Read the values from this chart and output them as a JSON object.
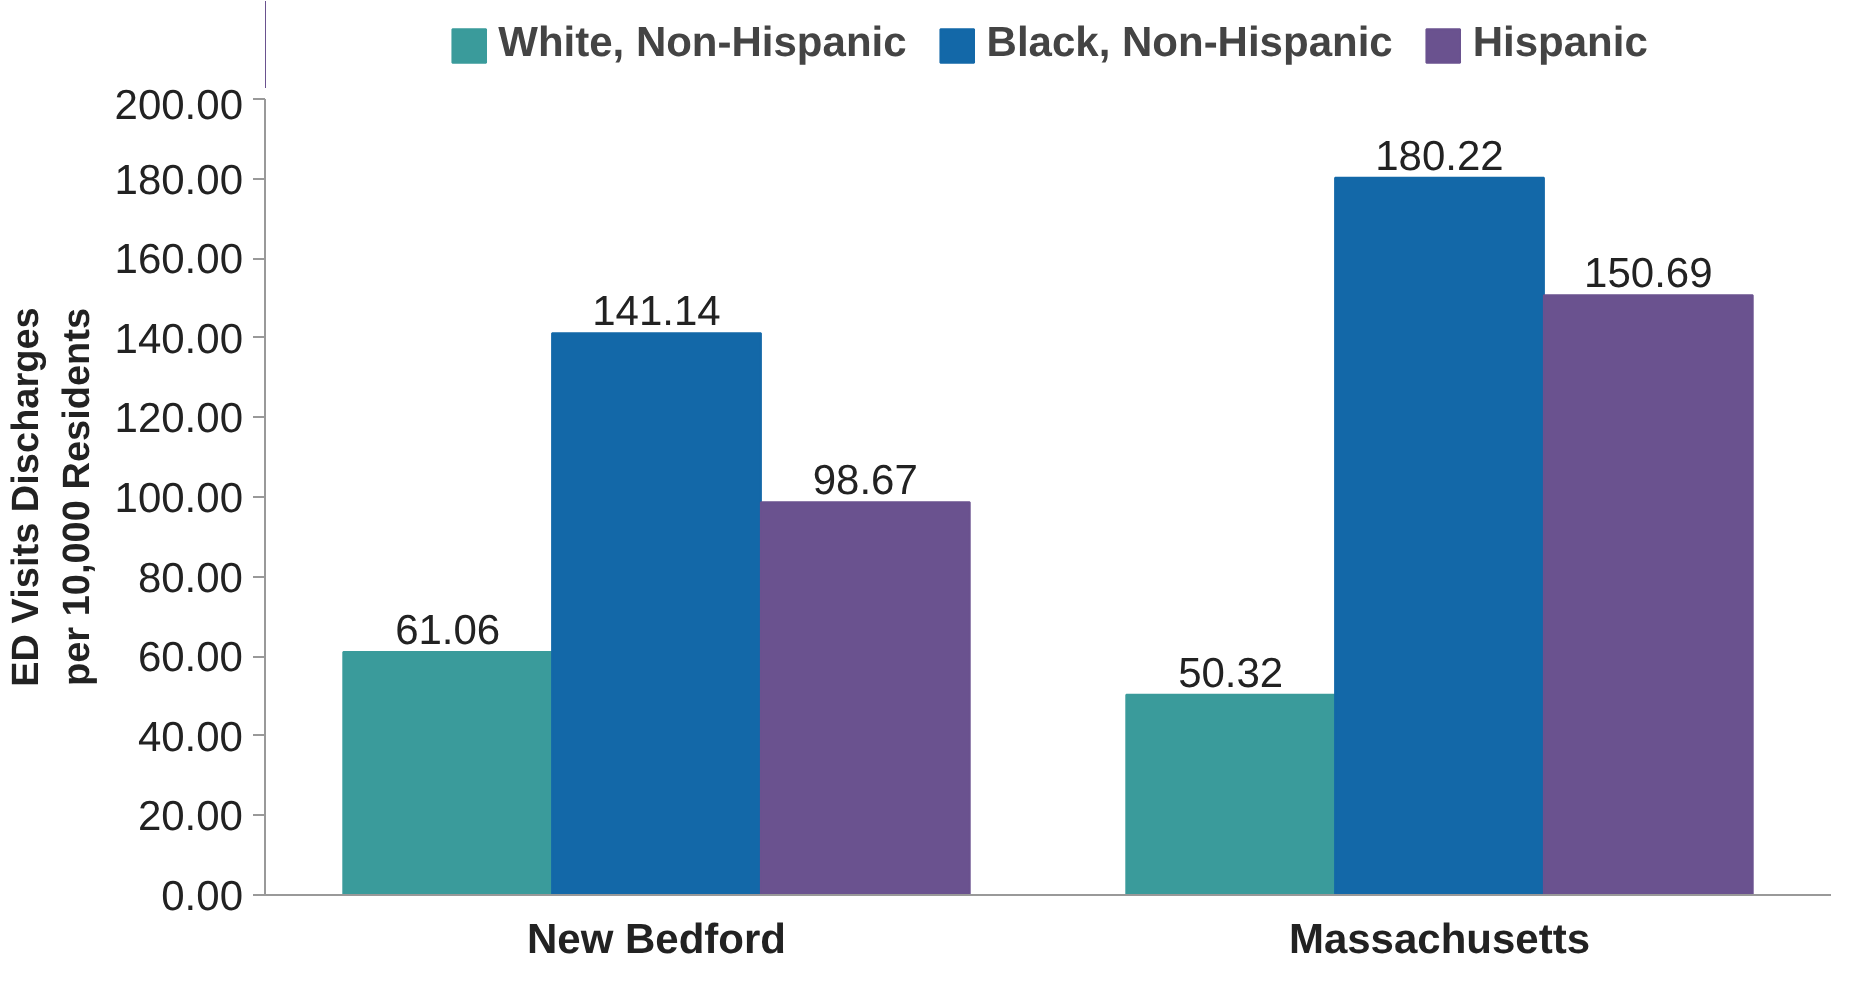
{
  "chart_data": {
    "type": "bar",
    "ylabel": "ED Visits Discharges per 10,000 Residents",
    "categories": [
      "New Bedford",
      "Massachusetts"
    ],
    "series": [
      {
        "name": "White, Non-Hispanic",
        "color": "#3a9b9b",
        "values": [
          61.06,
          50.32
        ]
      },
      {
        "name": "Black, Non-Hispanic",
        "color": "#1368a8",
        "values": [
          141.14,
          180.22
        ]
      },
      {
        "name": "Hispanic",
        "color": "#6a528f",
        "values": [
          98.67,
          150.69
        ]
      }
    ],
    "ylim": [
      0,
      200
    ],
    "yticks": [
      {
        "value": 0,
        "label": "0.00"
      },
      {
        "value": 20,
        "label": "20.00"
      },
      {
        "value": 40,
        "label": "40.00"
      },
      {
        "value": 60,
        "label": "60.00"
      },
      {
        "value": 80,
        "label": "80.00"
      },
      {
        "value": 100,
        "label": "100.00"
      },
      {
        "value": 120,
        "label": "120.00"
      },
      {
        "value": 140,
        "label": "140.00"
      },
      {
        "value": 160,
        "label": "160.00"
      },
      {
        "value": 180,
        "label": "180.00"
      },
      {
        "value": 200,
        "label": "200.00"
      }
    ],
    "data_labels": true,
    "grid": false,
    "legend": "top"
  }
}
